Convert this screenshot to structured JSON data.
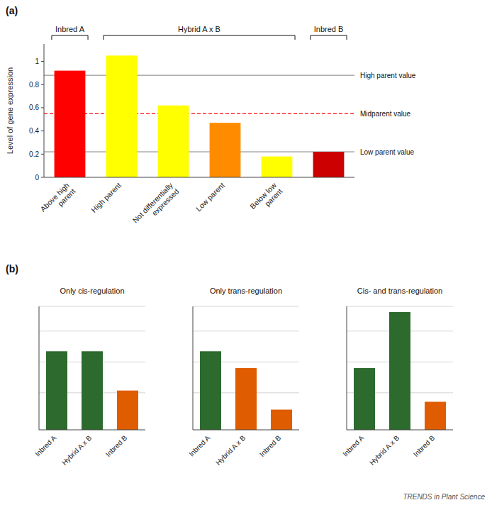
{
  "chart_data": [
    {
      "type": "bar",
      "title": "(a)",
      "ylabel": "Level of gene expression",
      "categories": [
        "Above high\nparent",
        "High parent",
        "Not differentially\nexpressed",
        "Low parent",
        "Below low\nparent",
        null
      ],
      "values": [
        0.92,
        1.05,
        0.62,
        0.47,
        0.18,
        0.22
      ],
      "colors": [
        "#ff0000",
        "#ffff00",
        "#ffff00",
        "#ff8c00",
        "#ffff00",
        "#cc0000"
      ],
      "ylim": [
        0,
        1.15
      ],
      "yticks": [
        0,
        0.2,
        0.4,
        0.6,
        0.8,
        1
      ],
      "annotations": [
        {
          "text": "High parent value",
          "y": 0.88,
          "color": "gray",
          "line_style": "solid"
        },
        {
          "text": "Midparent value",
          "y": 0.55,
          "color": "red",
          "line_style": "dashed"
        },
        {
          "text": "Low parent value",
          "y": 0.22,
          "color": "gray",
          "line_style": "solid"
        },
        {
          "text": "Inbred A",
          "from": 0,
          "to": 0
        },
        {
          "text": "Hybrid A x B",
          "from": 1,
          "to": 4
        },
        {
          "text": "Inbred B",
          "from": 5,
          "to": 5
        }
      ]
    },
    {
      "type": "bar",
      "title": "Only cis-regulation",
      "categories": [
        "Inbred A",
        "Hybrid A x B",
        "Inbred B"
      ],
      "values": [
        0.7,
        0.7,
        0.35
      ],
      "colors": [
        "#2d6a2d",
        "#2d6a2d",
        "#e05c00"
      ],
      "ylim": [
        0,
        1.1
      ],
      "yticks": [
        0.33,
        0.605,
        0.88,
        1.1
      ],
      "grid": true,
      "tick_labels": "x",
      "annotations": [
        "(b)"
      ]
    },
    {
      "type": "bar",
      "title": "Only trans-regulation",
      "categories": [
        "Inbred A",
        "Hybrid A x B",
        "Inbred B"
      ],
      "values": [
        0.7,
        0.55,
        0.18
      ],
      "colors": [
        "#2d6a2d",
        "#e05c00",
        "#e05c00"
      ],
      "ylim": [
        0,
        1.1
      ],
      "yticks": [
        0.33,
        0.605,
        0.88,
        1.1
      ],
      "grid": true,
      "tick_labels": "x"
    },
    {
      "type": "bar",
      "title": "Cis- and trans-regulation",
      "categories": [
        "Inbred A",
        "Hybrid A x B",
        "Inbred B"
      ],
      "values": [
        0.55,
        1.05,
        0.25
      ],
      "colors": [
        "#2d6a2d",
        "#2d6a2d",
        "#e05c00"
      ],
      "ylim": [
        0,
        1.1
      ],
      "yticks": [
        0.33,
        0.605,
        0.88,
        1.1
      ],
      "grid": true,
      "tick_labels": "x",
      "annotations": [
        "TRENDS in Plant Science"
      ]
    }
  ]
}
